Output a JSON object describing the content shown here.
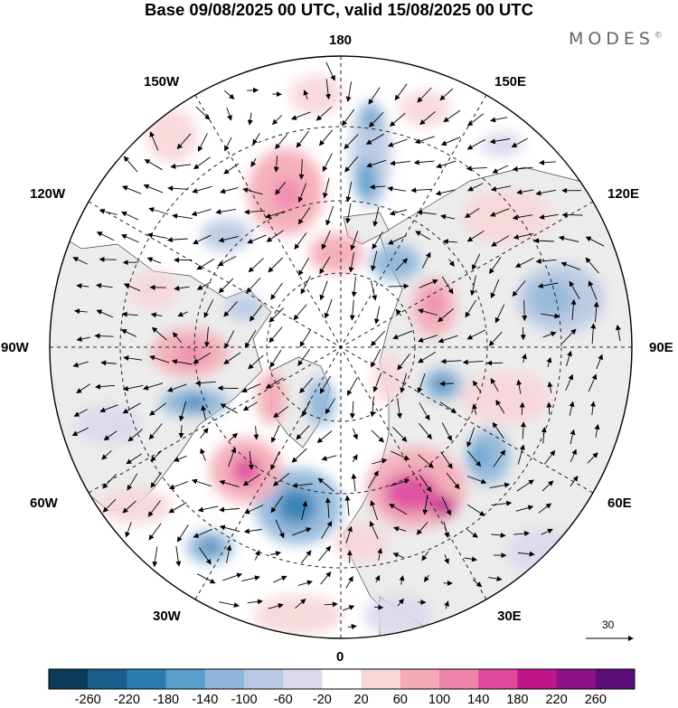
{
  "header": {
    "title": "Base 09/08/2025 00 UTC, valid 15/08/2025 00 UTC",
    "brand": "MODES",
    "brand_mark": "©"
  },
  "map": {
    "projection": "north polar stereographic",
    "longitude_labels": {
      "top": "180",
      "top_left": "150W",
      "top_right": "150E",
      "upper_left": "120W",
      "upper_right": "120E",
      "left": "90W",
      "right": "90E",
      "lower_left": "60W",
      "lower_right": "60E",
      "bottom_left": "30W",
      "bottom_right": "30E",
      "bottom": "0"
    },
    "reference_vector_label": "30"
  },
  "colorbar": {
    "labels": [
      "-260",
      "-220",
      "-180",
      "-140",
      "-100",
      "-60",
      "-20",
      "20",
      "60",
      "100",
      "140",
      "180",
      "220",
      "260"
    ],
    "colors": [
      "#0d3b5c",
      "#1a5f8c",
      "#2b7cb3",
      "#5a9fcc",
      "#8fb6da",
      "#b9c8e3",
      "#dad9ec",
      "#ffffff",
      "#f8d6da",
      "#f4aab7",
      "#ee84ab",
      "#e0489c",
      "#c0168a",
      "#8f1186",
      "#5c0f78"
    ]
  }
}
